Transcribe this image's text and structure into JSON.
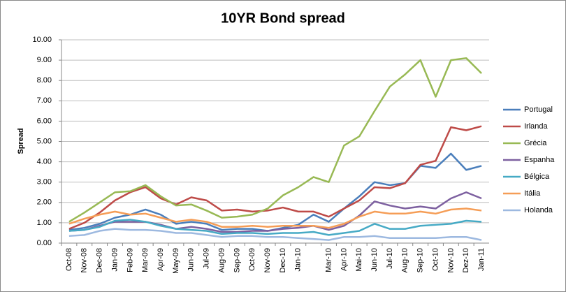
{
  "chart_data": {
    "type": "line",
    "title": "10YR Bond spread",
    "y_label": "Spread",
    "categories": [
      "Oct-08",
      "Nov-08",
      "Dec-08",
      "Jan-09",
      "Feb-09",
      "Mar-09",
      "Apr-09",
      "May-09",
      "Jun-09",
      "Jul-09",
      "Aug-09",
      "Sep-09",
      "Oct-09",
      "Nov-09",
      "Dec-10",
      "Jan-10",
      null,
      "Mar-10",
      "Apr-10",
      "Mai-10",
      "Jun-10",
      "Jul-10",
      "Aug-10",
      "Sep-10",
      "Oct-10",
      "Nov-10",
      "Dez-10",
      "Jan-11"
    ],
    "series": [
      {
        "name": "Portugal",
        "color": "#4a7ebb",
        "values": [
          0.65,
          0.75,
          0.95,
          1.25,
          1.4,
          1.65,
          1.4,
          0.95,
          1.05,
          0.95,
          0.65,
          0.7,
          0.7,
          0.6,
          0.75,
          0.9,
          1.4,
          1.05,
          1.7,
          2.3,
          3.0,
          2.85,
          2.95,
          3.8,
          3.7,
          4.4,
          3.6,
          3.8
        ]
      },
      {
        "name": "Irlanda",
        "color": "#be4b48",
        "values": [
          0.7,
          1.0,
          1.5,
          2.1,
          2.5,
          2.75,
          2.2,
          1.9,
          2.25,
          2.1,
          1.6,
          1.65,
          1.55,
          1.6,
          1.75,
          1.55,
          1.55,
          1.3,
          1.7,
          2.1,
          2.75,
          2.7,
          2.95,
          3.85,
          4.05,
          5.7,
          5.55,
          5.75
        ]
      },
      {
        "name": "Grécia",
        "color": "#98b954",
        "values": [
          1.05,
          1.5,
          2.0,
          2.5,
          2.55,
          2.85,
          2.3,
          1.85,
          1.9,
          1.6,
          1.25,
          1.3,
          1.4,
          1.7,
          2.35,
          2.75,
          3.25,
          3.0,
          4.8,
          5.25,
          6.5,
          7.7,
          8.3,
          9.0,
          7.2,
          9.0,
          9.1,
          8.35
        ]
      },
      {
        "name": "Espanha",
        "color": "#7d60a0",
        "values": [
          0.6,
          0.65,
          0.85,
          1.05,
          1.05,
          1.05,
          0.9,
          0.7,
          0.8,
          0.7,
          0.55,
          0.55,
          0.6,
          0.6,
          0.7,
          0.75,
          0.85,
          0.65,
          0.85,
          1.35,
          2.05,
          1.85,
          1.7,
          1.8,
          1.7,
          2.2,
          2.5,
          2.2
        ]
      },
      {
        "name": "Bélgica",
        "color": "#46aac5",
        "values": [
          0.6,
          0.65,
          0.8,
          1.1,
          1.15,
          1.05,
          0.85,
          0.7,
          0.65,
          0.6,
          0.45,
          0.5,
          0.5,
          0.45,
          0.5,
          0.5,
          0.55,
          0.4,
          0.5,
          0.6,
          0.95,
          0.7,
          0.7,
          0.85,
          0.9,
          0.95,
          1.1,
          1.05
        ]
      },
      {
        "name": "Itália",
        "color": "#f59d56",
        "values": [
          0.95,
          1.2,
          1.4,
          1.55,
          1.4,
          1.45,
          1.25,
          1.05,
          1.15,
          1.05,
          0.8,
          0.8,
          0.85,
          0.8,
          0.85,
          0.85,
          0.85,
          0.75,
          0.95,
          1.3,
          1.55,
          1.45,
          1.45,
          1.55,
          1.45,
          1.65,
          1.7,
          1.6
        ]
      },
      {
        "name": "Holanda",
        "color": "#9db9e0",
        "values": [
          0.35,
          0.4,
          0.6,
          0.7,
          0.65,
          0.65,
          0.6,
          0.5,
          0.5,
          0.4,
          0.3,
          0.35,
          0.35,
          0.3,
          0.3,
          0.25,
          0.2,
          0.15,
          0.3,
          0.3,
          0.35,
          0.25,
          0.25,
          0.25,
          0.25,
          0.3,
          0.3,
          0.15
        ]
      }
    ],
    "ylim": [
      0,
      10
    ],
    "yticks": [
      {
        "value": 0,
        "label": "0.00"
      },
      {
        "value": 1,
        "label": "1.00"
      },
      {
        "value": 2,
        "label": "2.00"
      },
      {
        "value": 3,
        "label": "3.00"
      },
      {
        "value": 4,
        "label": "4.00"
      },
      {
        "value": 5,
        "label": "5.00"
      },
      {
        "value": 6,
        "label": "6.00"
      },
      {
        "value": 7,
        "label": "7.00"
      },
      {
        "value": 8,
        "label": "8.00"
      },
      {
        "value": 9,
        "label": "9.00"
      },
      {
        "value": 10,
        "label": "10.00"
      }
    ],
    "grid": true,
    "legend": "right"
  }
}
